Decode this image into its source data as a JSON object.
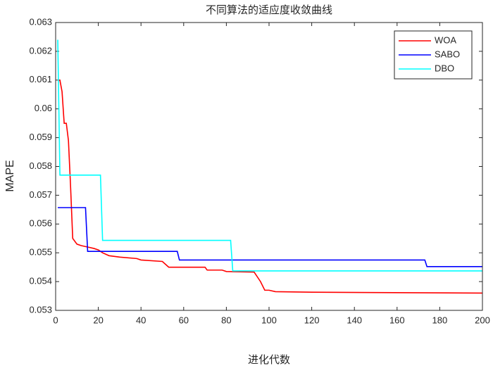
{
  "chart_data": {
    "type": "line",
    "title": "不同算法的适应度收敛曲线",
    "xlabel": "进化代数",
    "ylabel": "MAPE",
    "xlim": [
      0,
      200
    ],
    "xticks": [
      0,
      20,
      40,
      60,
      80,
      100,
      120,
      140,
      160,
      180,
      200
    ],
    "ylim": [
      0.053,
      0.063
    ],
    "yticks": [
      0.053,
      0.054,
      0.055,
      0.056,
      0.057,
      0.058,
      0.059,
      0.06,
      0.061,
      0.062,
      0.063
    ],
    "grid": false,
    "legend": "northeast",
    "series": [
      {
        "name": "WOA",
        "color": "#ff0000",
        "x": [
          1,
          2,
          3,
          4,
          5,
          6,
          7,
          8,
          9,
          10,
          12,
          15,
          18,
          20,
          22,
          25,
          30,
          38,
          40,
          50,
          53,
          70,
          71,
          78,
          80,
          93,
          96,
          98,
          100,
          103,
          120,
          150,
          200
        ],
        "values": [
          0.061,
          0.061,
          0.0606,
          0.0595,
          0.0595,
          0.0589,
          0.0573,
          0.0555,
          0.0554,
          0.0553,
          0.05525,
          0.0552,
          0.05515,
          0.0551,
          0.055,
          0.0549,
          0.05485,
          0.0548,
          0.05475,
          0.0547,
          0.0545,
          0.0545,
          0.0544,
          0.0544,
          0.05435,
          0.05433,
          0.054,
          0.0537,
          0.0537,
          0.05365,
          0.05363,
          0.05362,
          0.0536
        ]
      },
      {
        "name": "SABO",
        "color": "#0000ff",
        "x": [
          1,
          14,
          15,
          57,
          58,
          173,
          174,
          200
        ],
        "values": [
          0.05657,
          0.05657,
          0.05505,
          0.05505,
          0.05475,
          0.05475,
          0.05452,
          0.05452
        ]
      },
      {
        "name": "DBO",
        "color": "#00ffff",
        "x": [
          1,
          2,
          21,
          22,
          82,
          83,
          200
        ],
        "values": [
          0.0624,
          0.0577,
          0.0577,
          0.05543,
          0.05543,
          0.05437,
          0.05437
        ]
      }
    ]
  }
}
